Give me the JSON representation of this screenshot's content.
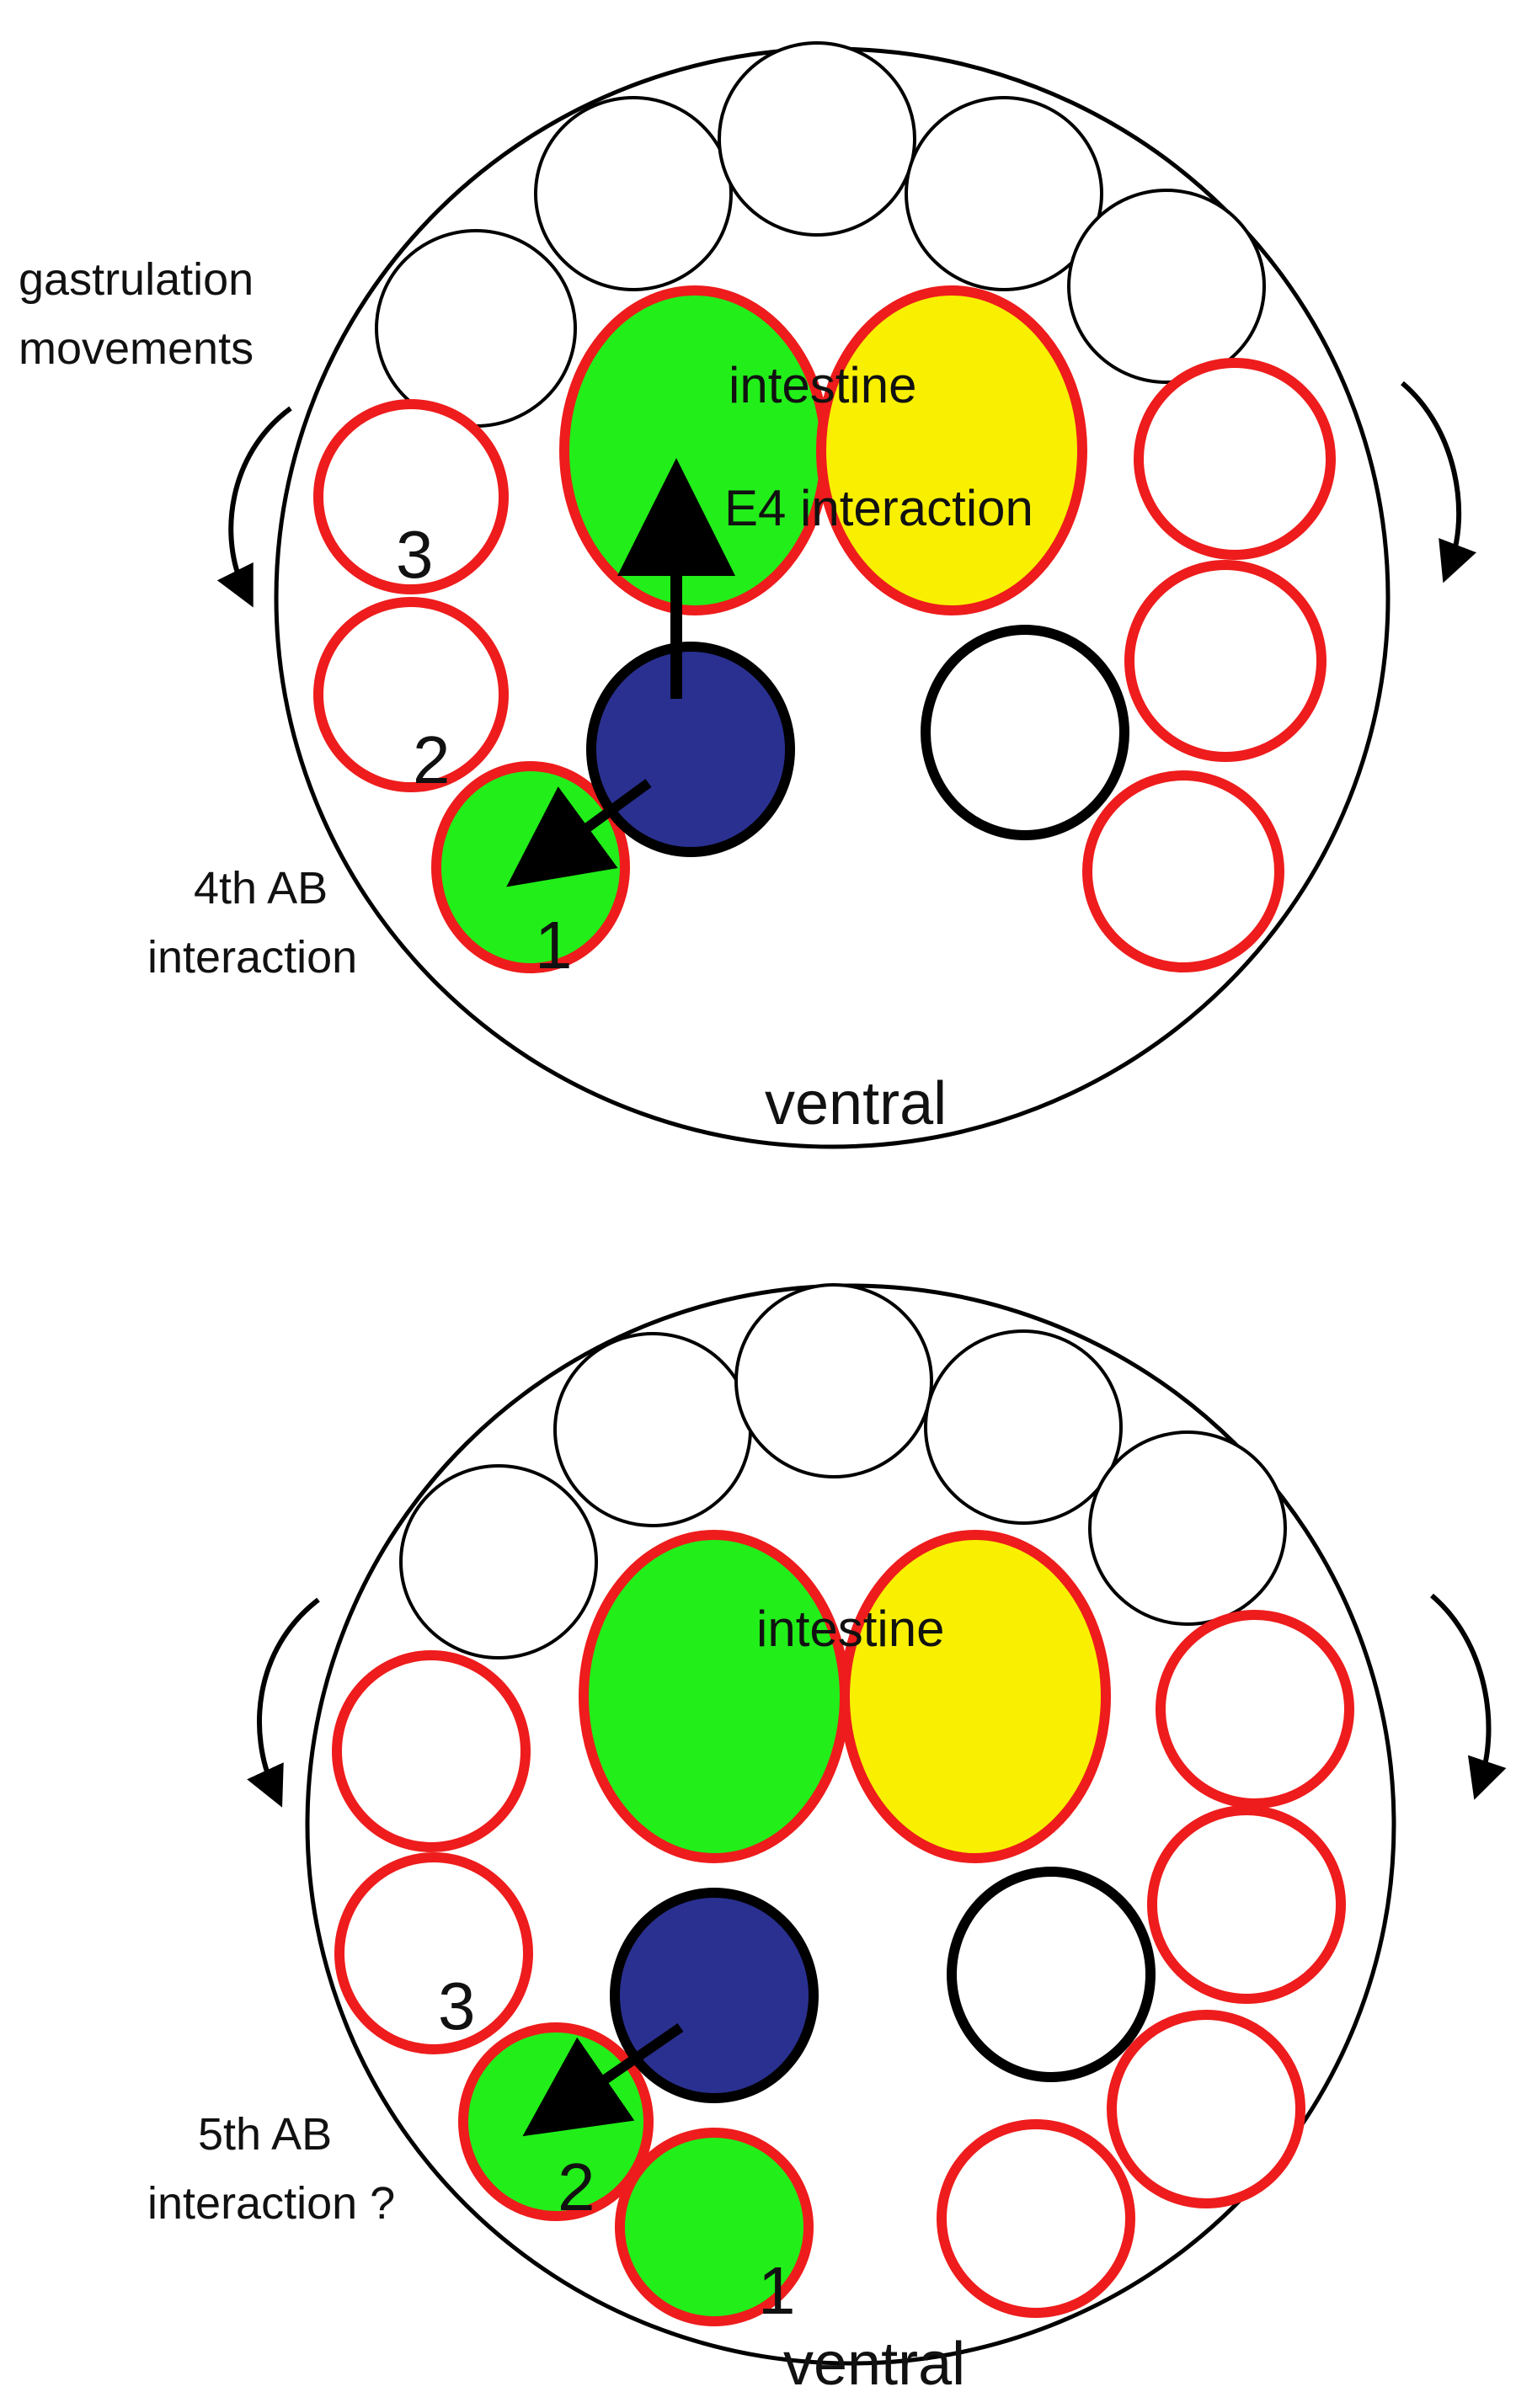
{
  "colors": {
    "outline": "#000000",
    "red_border": "#ee1c1c",
    "green": "#22ee1a",
    "yellow": "#f8f000",
    "blue": "#2a3090",
    "white": "#ffffff"
  },
  "top_panel": {
    "side_label_line1": "gastrulation",
    "side_label_line2": "movements",
    "intestine_label": "intestine",
    "e4_label": "E4 interaction",
    "num_1": "1",
    "num_2": "2",
    "num_3": "3",
    "ab_label_line1": "4th AB",
    "ab_label_line2": "interaction",
    "ventral_label": "ventral"
  },
  "bottom_panel": {
    "intestine_label": "intestine",
    "num_1": "1",
    "num_2": "2",
    "num_3": "3",
    "ab_label_line1": "5th AB",
    "ab_label_line2": "interaction ?",
    "ventral_label": "ventral"
  },
  "icons": [
    "curved-arrow-icon",
    "straight-arrow-icon"
  ]
}
